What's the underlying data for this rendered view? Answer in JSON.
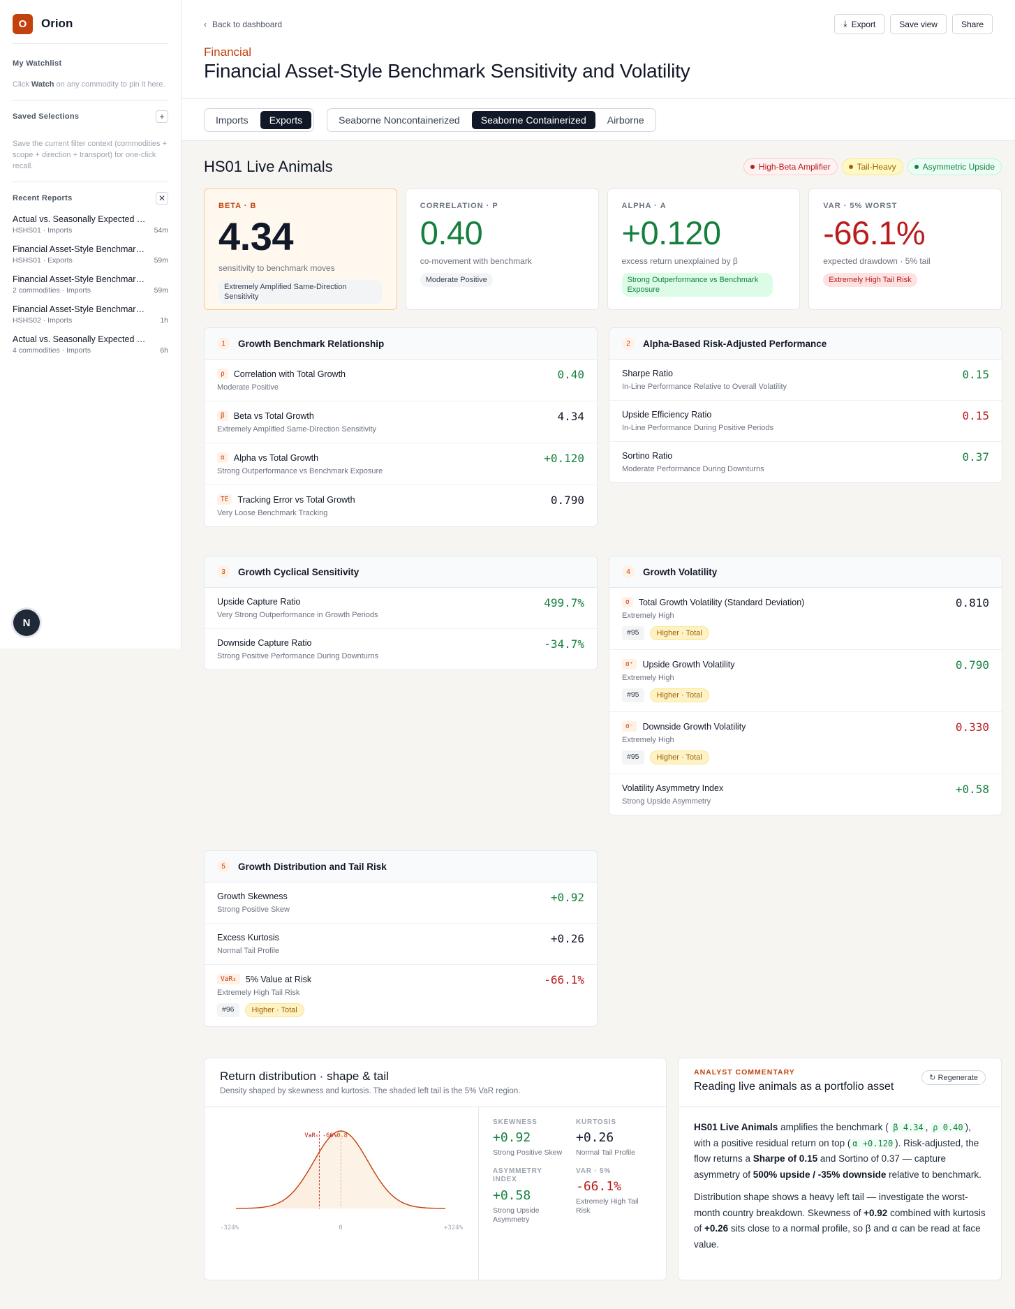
{
  "brand": {
    "logo_letter": "O",
    "name": "Orion"
  },
  "sidebar": {
    "watchlist_title": "My Watchlist",
    "watchlist_help_pre": "Click ",
    "watchlist_help_bold": "Watch",
    "watchlist_help_post": " on any commodity to pin it here.",
    "saved_title": "Saved Selections",
    "saved_help": "Save the current filter context (commodities + scope + direction + transport) for one-click recall.",
    "recent_title": "Recent Reports",
    "recent": [
      {
        "title": "Actual vs. Seasonally Expected …",
        "sub": "HSHS01 · Imports",
        "time": "54m"
      },
      {
        "title": "Financial Asset-Style Benchmar…",
        "sub": "HSHS01 · Exports",
        "time": "59m"
      },
      {
        "title": "Financial Asset-Style Benchmar…",
        "sub": "2 commodities · Imports",
        "time": "59m"
      },
      {
        "title": "Financial Asset-Style Benchmar…",
        "sub": "HSHS02 · Imports",
        "time": "1h"
      },
      {
        "title": "Actual vs. Seasonally Expected …",
        "sub": "4 commodities · Imports",
        "time": "6h"
      }
    ],
    "avatar": "N"
  },
  "header": {
    "back": "Back to dashboard",
    "actions": {
      "export": "Export",
      "save": "Save view",
      "share": "Share"
    },
    "category": "Financial",
    "title": "Financial Asset-Style Benchmark Sensitivity and Volatility"
  },
  "tabs": {
    "direction": [
      "Imports",
      "Exports"
    ],
    "transport": [
      "Seaborne Noncontainerized",
      "Seaborne Containerized",
      "Airborne"
    ]
  },
  "entity": {
    "name": "HS01 Live Animals",
    "badges": [
      "High-Beta Amplifier",
      "Tail-Heavy",
      "Asymmetric Upside"
    ]
  },
  "kpis": [
    {
      "label": "BETA · Β",
      "value": "4.34",
      "desc": "sensitivity to benchmark moves",
      "pill": "Extremely Amplified Same-Direction Sensitivity"
    },
    {
      "label": "CORRELATION · Ρ",
      "value": "0.40",
      "desc": "co-movement with benchmark",
      "pill": "Moderate Positive"
    },
    {
      "label": "ALPHA · Α",
      "value": "+0.120",
      "desc": "excess return unexplained by β",
      "pill": "Strong Outperformance vs Benchmark Exposure"
    },
    {
      "label": "VAR · 5% WORST",
      "value": "-66.1%",
      "desc": "expected drawdown · 5% tail",
      "pill": "Extremely High Tail Risk"
    }
  ],
  "sections": {
    "s1": {
      "num": "1",
      "title": "Growth Benchmark Relationship",
      "rows": [
        {
          "sym": "ρ",
          "name": "Correlation with Total Growth",
          "sub": "Moderate Positive",
          "value": "0.40"
        },
        {
          "sym": "β",
          "name": "Beta vs Total Growth",
          "sub": "Extremely Amplified Same-Direction Sensitivity",
          "value": "4.34"
        },
        {
          "sym": "α",
          "name": "Alpha vs Total Growth",
          "sub": "Strong Outperformance vs Benchmark Exposure",
          "value": "+0.120"
        },
        {
          "sym": "TE",
          "name": "Tracking Error vs Total Growth",
          "sub": "Very Loose Benchmark Tracking",
          "value": "0.790"
        }
      ]
    },
    "s2": {
      "num": "2",
      "title": "Alpha-Based Risk-Adjusted Performance",
      "rows": [
        {
          "name": "Sharpe Ratio",
          "sub": "In-Line Performance Relative to Overall Volatility",
          "value": "0.15"
        },
        {
          "name": "Upside Efficiency Ratio",
          "sub": "In-Line Performance During Positive Periods",
          "value": "0.15"
        },
        {
          "name": "Sortino Ratio",
          "sub": "Moderate Performance During Downturns",
          "value": "0.37"
        }
      ]
    },
    "s3": {
      "num": "3",
      "title": "Growth Cyclical Sensitivity",
      "rows": [
        {
          "name": "Upside Capture Ratio",
          "sub": "Very Strong Outperformance in Growth Periods",
          "value": "499.7%"
        },
        {
          "name": "Downside Capture Ratio",
          "sub": "Strong Positive Performance During Downturns",
          "value": "-34.7%"
        }
      ]
    },
    "s4": {
      "num": "4",
      "title": "Growth Volatility",
      "rows": [
        {
          "sym": "σ",
          "name": "Total Growth Volatility (Standard Deviation)",
          "sub": "Extremely High",
          "value": "0.810",
          "rank": "#95",
          "tag": "Higher · Total"
        },
        {
          "sym": "σ⁺",
          "name": "Upside Growth Volatility",
          "sub": "Extremely High",
          "value": "0.790",
          "rank": "#95",
          "tag": "Higher · Total"
        },
        {
          "sym": "σ⁻",
          "name": "Downside Growth Volatility",
          "sub": "Extremely High",
          "value": "0.330",
          "rank": "#95",
          "tag": "Higher · Total"
        },
        {
          "name": "Volatility Asymmetry Index",
          "sub": "Strong Upside Asymmetry",
          "value": "+0.58"
        }
      ]
    },
    "s5": {
      "num": "5",
      "title": "Growth Distribution and Tail Risk",
      "rows": [
        {
          "name": "Growth Skewness",
          "sub": "Strong Positive Skew",
          "value": "+0.92"
        },
        {
          "name": "Excess Kurtosis",
          "sub": "Normal Tail Profile",
          "value": "+0.26"
        },
        {
          "sym": "VaR₅",
          "name": "5% Value at Risk",
          "sub": "Extremely High Tail Risk",
          "value": "-66.1%",
          "rank": "#96",
          "tag": "Higher · Total"
        }
      ]
    }
  },
  "distribution": {
    "title": "Return distribution · shape & tail",
    "subtitle": "Density shaped by skewness and kurtosis. The shaded left tail is the 5% VaR region.",
    "var_marker": "VaR₅ -66%",
    "mean_marker": "0.8",
    "x_ticks": [
      "-324%",
      "0",
      "+324%"
    ],
    "stats": [
      {
        "label": "SKEWNESS",
        "value": "+0.92",
        "desc": "Strong Positive Skew"
      },
      {
        "label": "KURTOSIS",
        "value": "+0.26",
        "desc": "Normal Tail Profile"
      },
      {
        "label": "ASYMMETRY INDEX",
        "value": "+0.58",
        "desc": "Strong Upside Asymmetry"
      },
      {
        "label": "VAR · 5%",
        "value": "-66.1%",
        "desc": "Extremely High Tail Risk"
      }
    ]
  },
  "chart_data": {
    "type": "area",
    "x_ticks": [
      "-324%",
      "0",
      "+324%"
    ],
    "var_line": -66,
    "markers": [
      "VaR₅ -66%",
      "0.8"
    ]
  },
  "commentary": {
    "kicker": "ANALYST COMMENTARY",
    "title": "Reading live animals as a portfolio asset",
    "regenerate": "↻ Regenerate",
    "p1": {
      "entity": "HS01 Live Animals",
      "t1": " amplifies the benchmark ( ",
      "beta": "β 4.34",
      "t2": ", ",
      "rho": "ρ 0.40",
      "t3": "), with a positive residual return on top (",
      "alpha": "α +0.120",
      "t4": "). Risk-adjusted, the flow returns a ",
      "sharpe": "Sharpe of 0.15",
      "t5": " and Sortino of 0.37 — capture asymmetry of ",
      "capture": "500% upside / -35% downside",
      "t6": " relative to benchmark."
    },
    "p2": {
      "t1": "Distribution shape shows a heavy left tail — investigate the worst-month country breakdown. Skewness of ",
      "skew": "+0.92",
      "t2": " combined with kurtosis of ",
      "kurt": "+0.26",
      "t3": " sits close to a normal profile, so β and α can be read at face value."
    }
  }
}
